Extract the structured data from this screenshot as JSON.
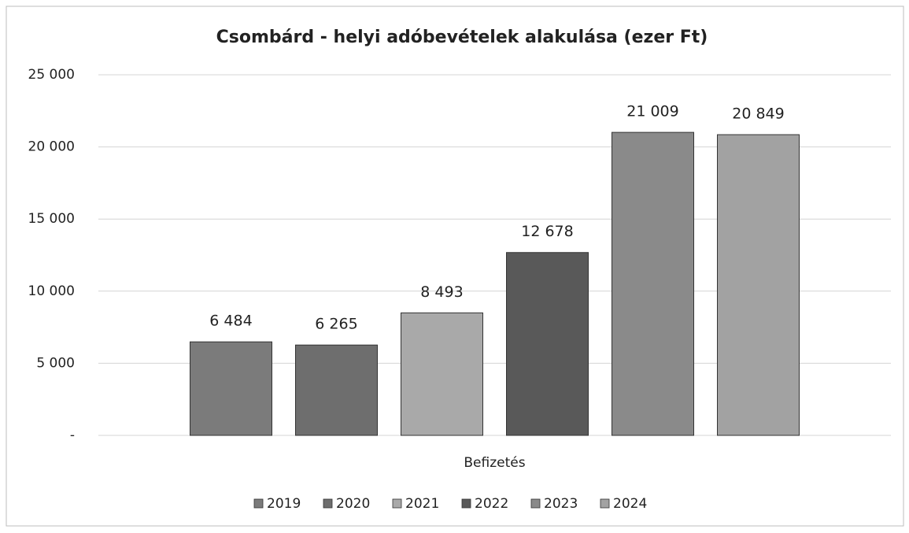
{
  "chart_data": {
    "type": "bar",
    "title": "Csombárd - helyi adóbevételek alakulása (ezer Ft)",
    "categories": [
      "Befizetés"
    ],
    "series": [
      {
        "name": "2019",
        "color": "#7b7b7b",
        "values": [
          6484
        ],
        "value_labels": [
          "6 484"
        ]
      },
      {
        "name": "2020",
        "color": "#6e6e6e",
        "values": [
          6265
        ],
        "value_labels": [
          "6 265"
        ]
      },
      {
        "name": "2021",
        "color": "#a9a9a9",
        "values": [
          8493
        ],
        "value_labels": [
          "8 493"
        ]
      },
      {
        "name": "2022",
        "color": "#595959",
        "values": [
          12678
        ],
        "value_labels": [
          "12 678"
        ]
      },
      {
        "name": "2023",
        "color": "#8a8a8a",
        "values": [
          21009
        ],
        "value_labels": [
          "21 009"
        ]
      },
      {
        "name": "2024",
        "color": "#a2a2a2",
        "values": [
          20849
        ],
        "value_labels": [
          "20 849"
        ]
      }
    ],
    "ylim": [
      0,
      25000
    ],
    "yticks": [
      {
        "value": 0,
        "label": "-"
      },
      {
        "value": 5000,
        "label": "5 000"
      },
      {
        "value": 10000,
        "label": "10 000"
      },
      {
        "value": 15000,
        "label": "15 000"
      },
      {
        "value": 20000,
        "label": "20 000"
      },
      {
        "value": 25000,
        "label": "25 000"
      }
    ],
    "grid": true,
    "legend": "bottom"
  }
}
